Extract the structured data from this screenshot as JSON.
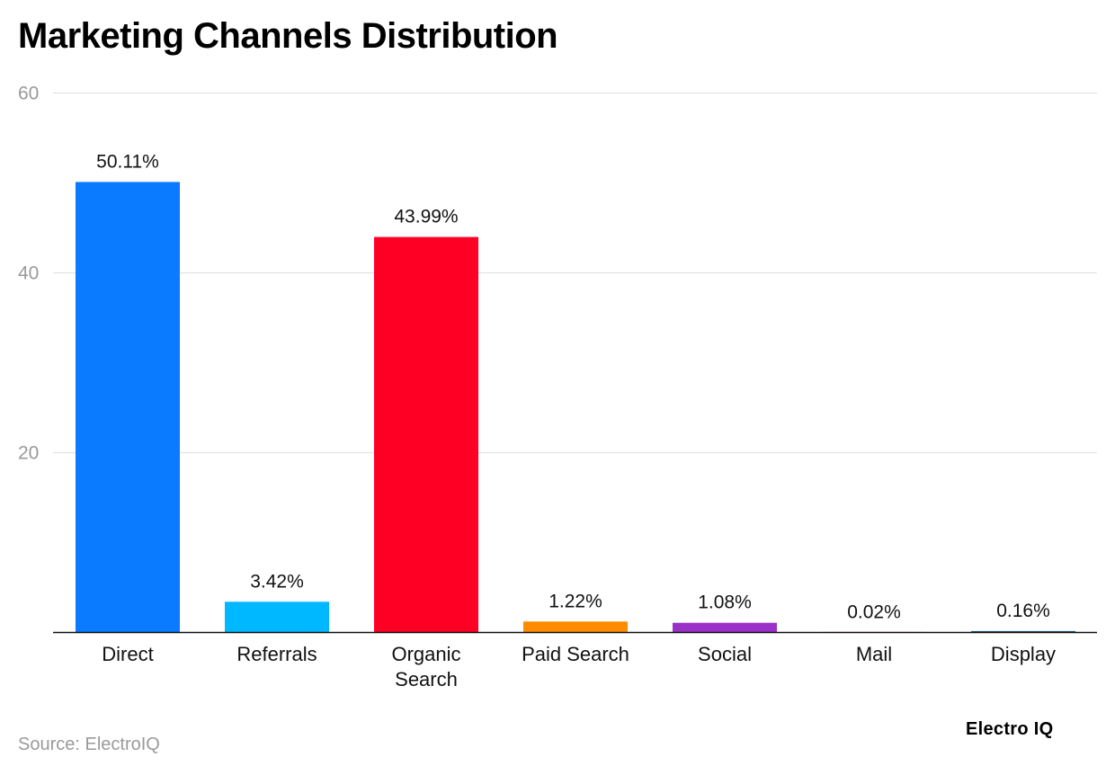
{
  "chart_data": {
    "type": "bar",
    "title": "Marketing Channels Distribution",
    "categories": [
      "Direct",
      "Referrals",
      "Organic Search",
      "Paid Search",
      "Social",
      "Mail",
      "Display"
    ],
    "values": [
      50.11,
      3.42,
      43.99,
      1.22,
      1.08,
      0.02,
      0.16
    ],
    "value_labels": [
      "50.11%",
      "3.42%",
      "43.99%",
      "1.22%",
      "1.08%",
      "0.02%",
      "0.16%"
    ],
    "colors": [
      "#0A7BFF",
      "#00B8FF",
      "#FF0025",
      "#FF8C00",
      "#9B30C8",
      "#D81B60",
      "#1E5A8C"
    ],
    "ylim": [
      0,
      60
    ],
    "yticks": [
      20,
      40,
      60
    ],
    "grid": true,
    "xlabel": "",
    "ylabel": ""
  },
  "footer": {
    "source": "Source: ElectroIQ",
    "brand": "Electro IQ"
  }
}
